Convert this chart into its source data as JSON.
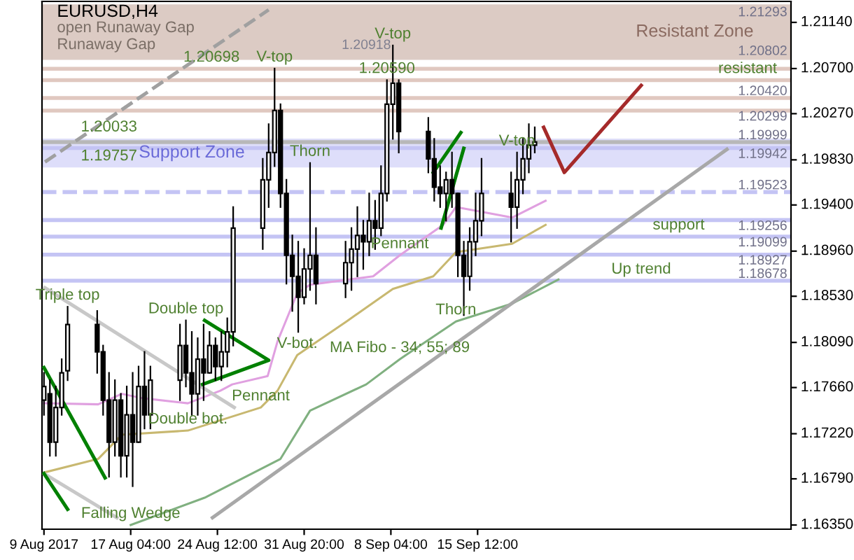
{
  "chart_data": {
    "type": "candlestick",
    "title": "EURUSD,H4",
    "color": "#000000",
    "x": [
      "2017-08-09T20:00",
      "2017-08-10T08:00",
      "2017-08-10T20:00",
      "2017-08-11T08:00",
      "2017-08-11T20:00",
      "2017-08-14T08:00",
      "2017-08-14T20:00",
      "2017-08-15T08:00",
      "2017-08-15T20:00",
      "2017-08-16T08:00",
      "2017-08-16T20:00",
      "2017-08-17T08:00",
      "2017-08-17T20:00",
      "2017-08-18T08:00",
      "2017-08-18T20:00",
      "2017-08-21T08:00",
      "2017-08-21T20:00",
      "2017-08-22T08:00",
      "2017-08-22T20:00",
      "2017-08-23T08:00",
      "2017-08-23T20:00",
      "2017-08-24T08:00",
      "2017-08-24T20:00",
      "2017-08-25T08:00",
      "2017-08-25T20:00",
      "2017-08-28T08:00",
      "2017-08-28T20:00",
      "2017-08-29T08:00",
      "2017-08-29T20:00",
      "2017-08-30T08:00",
      "2017-08-30T20:00",
      "2017-08-31T08:00",
      "2017-08-31T20:00",
      "2017-09-01T08:00",
      "2017-09-01T20:00",
      "2017-09-04T08:00",
      "2017-09-04T20:00",
      "2017-09-05T08:00",
      "2017-09-05T20:00",
      "2017-09-06T08:00",
      "2017-09-06T20:00",
      "2017-09-07T08:00",
      "2017-09-07T20:00",
      "2017-09-08T08:00",
      "2017-09-08T20:00",
      "2017-09-11T08:00",
      "2017-09-11T20:00",
      "2017-09-12T08:00",
      "2017-09-12T20:00",
      "2017-09-13T08:00",
      "2017-09-13T20:00",
      "2017-09-14T08:00",
      "2017-09-14T20:00",
      "2017-09-15T08:00",
      "2017-09-15T20:00",
      "2017-09-18T08:00",
      "2017-09-18T20:00",
      "2017-09-19T08:00",
      "2017-09-19T20:00",
      "2017-09-20T08:00"
    ],
    "ohlc": [
      [
        1.1754,
        1.178,
        1.174,
        1.1767
      ],
      [
        1.176,
        1.1773,
        1.1701,
        1.1714
      ],
      [
        1.1714,
        1.1767,
        1.1701,
        1.1747
      ],
      [
        1.1747,
        1.1793,
        1.174,
        1.178
      ],
      [
        1.1782,
        1.1843,
        1.1773,
        1.1826
      ],
      [
        1.1826,
        1.1839,
        1.178,
        1.18
      ],
      [
        1.18,
        1.1806,
        1.174,
        1.1754
      ],
      [
        1.1754,
        1.178,
        1.1681,
        1.1714
      ],
      [
        1.1714,
        1.1773,
        1.1701,
        1.1754
      ],
      [
        1.1754,
        1.176,
        1.1681,
        1.1701
      ],
      [
        1.1701,
        1.1767,
        1.1681,
        1.174
      ],
      [
        1.174,
        1.178,
        1.1672,
        1.1714
      ],
      [
        1.1714,
        1.1786,
        1.1714,
        1.1767
      ],
      [
        1.1767,
        1.18,
        1.1727,
        1.174
      ],
      [
        1.174,
        1.1786,
        1.1727,
        1.1773
      ],
      [
        1.1773,
        1.1826,
        1.1754,
        1.1806
      ],
      [
        1.1806,
        1.183,
        1.1767,
        1.178
      ],
      [
        1.178,
        1.1819,
        1.174,
        1.176
      ],
      [
        1.176,
        1.1813,
        1.174,
        1.1793
      ],
      [
        1.1793,
        1.1826,
        1.1754,
        1.178
      ],
      [
        1.178,
        1.1819,
        1.178,
        1.1806
      ],
      [
        1.1806,
        1.1813,
        1.1773,
        1.1786
      ],
      [
        1.1786,
        1.1819,
        1.1773,
        1.18
      ],
      [
        1.18,
        1.1832,
        1.1786,
        1.1819
      ],
      [
        1.1819,
        1.1938,
        1.1806,
        1.1918
      ],
      [
        1.1918,
        1.1984,
        1.1898,
        1.1964
      ],
      [
        1.1964,
        1.2017,
        1.1938,
        1.199
      ],
      [
        1.199,
        1.207,
        1.1977,
        1.203
      ],
      [
        1.203,
        1.2036,
        1.1938,
        1.1951
      ],
      [
        1.1951,
        1.1964,
        1.1865,
        1.1892
      ],
      [
        1.1892,
        1.1911,
        1.1839,
        1.1872
      ],
      [
        1.1872,
        1.1905,
        1.1819,
        1.1852
      ],
      [
        1.1852,
        1.1898,
        1.1846,
        1.1879
      ],
      [
        1.1879,
        1.198,
        1.1859,
        1.1892
      ],
      [
        1.1892,
        1.1918,
        1.1846,
        1.1865
      ],
      [
        1.1865,
        1.1905,
        1.1852,
        1.1885
      ],
      [
        1.1885,
        1.1918,
        1.1859,
        1.1898
      ],
      [
        1.1898,
        1.1938,
        1.1872,
        1.1911
      ],
      [
        1.1911,
        1.1925,
        1.1879,
        1.1905
      ],
      [
        1.1905,
        1.1951,
        1.1892,
        1.1925
      ],
      [
        1.1925,
        1.1944,
        1.1898,
        1.1918
      ],
      [
        1.1918,
        1.1977,
        1.1911,
        1.1951
      ],
      [
        1.1951,
        1.2059,
        1.1944,
        1.2036
      ],
      [
        1.2036,
        1.2092,
        1.2003,
        1.2056
      ],
      [
        1.2056,
        1.2059,
        1.199,
        1.201
      ],
      [
        1.201,
        1.2023,
        1.1971,
        1.1984
      ],
      [
        1.1984,
        1.2003,
        1.1944,
        1.1957
      ],
      [
        1.1957,
        1.1977,
        1.1938,
        1.1951
      ],
      [
        1.1951,
        1.1971,
        1.1925,
        1.1964
      ],
      [
        1.1964,
        1.199,
        1.1938,
        1.1951
      ],
      [
        1.1951,
        1.1951,
        1.1872,
        1.1892
      ],
      [
        1.1892,
        1.1905,
        1.1835,
        1.1872
      ],
      [
        1.1872,
        1.1918,
        1.1859,
        1.1905
      ],
      [
        1.1905,
        1.1951,
        1.1892,
        1.1925
      ],
      [
        1.1925,
        1.1984,
        1.1911,
        1.1951
      ],
      [
        1.1951,
        1.1971,
        1.1905,
        1.1938
      ],
      [
        1.1938,
        1.199,
        1.1918,
        1.1964
      ],
      [
        1.1964,
        1.2003,
        1.1951,
        1.1984
      ],
      [
        1.1984,
        1.2017,
        1.1971,
        1.1997
      ],
      [
        1.1997,
        1.2014,
        1.199,
        1.2
      ]
    ],
    "series": [
      {
        "type": "line",
        "color": "#e0a0e0",
        "x": [
          "2017-08-09T20:00",
          "2017-08-14T10:00",
          "2017-08-16T10:00",
          "2017-08-18T02:00",
          "2017-08-22T00:00",
          "2017-08-24T18:00",
          "2017-08-25T18:00",
          "2017-08-28T18:00",
          "2017-08-29T14:00",
          "2017-08-31T06:00",
          "2017-09-01T08:00",
          "2017-09-06T16:00",
          "2017-09-08T22:00",
          "2017-09-12T14:00",
          "2017-09-13T16:00",
          "2017-09-18T10:00",
          "2017-09-21T06:00"
        ],
        "values": [
          1.1751,
          1.175,
          1.176,
          1.1756,
          1.1751,
          1.1763,
          1.1769,
          1.1777,
          1.181,
          1.1856,
          1.1864,
          1.1872,
          1.1892,
          1.1921,
          1.1938,
          1.1928,
          1.1944
        ]
      },
      {
        "type": "line",
        "color": "#c8b870",
        "x": [
          "2017-08-09T20:00",
          "2017-08-14T10:00",
          "2017-08-16T10:00",
          "2017-08-22T00:00",
          "2017-08-28T04:00",
          "2017-08-29T14:00",
          "2017-08-31T06:00",
          "2017-09-04T10:00",
          "2017-09-08T08:00",
          "2017-09-11T18:00",
          "2017-09-13T16:00",
          "2017-09-18T10:00",
          "2017-09-21T06:00"
        ],
        "values": [
          1.1685,
          1.1698,
          1.1721,
          1.1725,
          1.1747,
          1.1763,
          1.1797,
          1.1829,
          1.186,
          1.1872,
          1.1895,
          1.1903,
          1.1921
        ]
      },
      {
        "type": "line",
        "color": "#80b080",
        "x": [
          "2017-08-17T04:00",
          "2017-08-23T10:00",
          "2017-08-29T20:00",
          "2017-09-01T08:00",
          "2017-09-06T02:00",
          "2017-09-08T22:00",
          "2017-09-13T16:00",
          "2017-09-18T10:00",
          "2017-09-22T08:00"
        ],
        "values": [
          1.1635,
          1.1661,
          1.1698,
          1.1744,
          1.1769,
          1.1793,
          1.1829,
          1.1846,
          1.1869
        ]
      },
      {
        "type": "line",
        "color": "#a8a8a8",
        "x": [
          "2017-08-24T02:00",
          "2017-10-06T14:00"
        ],
        "values": [
          1.1642,
          1.1993
        ]
      },
      {
        "type": "line",
        "color": "#a0a0a0",
        "line_style": "dashed",
        "x": [
          "2017-08-09T22:00",
          "2017-08-28T20:00"
        ],
        "values": [
          1.1981,
          1.2126
        ]
      },
      {
        "type": "line",
        "color": "#c8c8c8",
        "x": [
          "2017-08-09T22:00",
          "2017-08-25T22:00"
        ],
        "values": [
          1.1861,
          1.1747
        ]
      },
      {
        "type": "line",
        "color": "#c8c8c8",
        "x": [
          "2017-08-09T20:00",
          "2017-08-16T00:00"
        ],
        "values": [
          1.1684,
          1.1642
        ]
      },
      {
        "type": "line",
        "color": "#008000",
        "x": [
          "2017-08-09T20:00",
          "2017-08-15T00:00"
        ],
        "values": [
          1.1785,
          1.168
        ]
      },
      {
        "type": "line",
        "color": "#008000",
        "x": [
          "2017-08-09T20:00",
          "2017-08-11T20:00"
        ],
        "values": [
          1.1684,
          1.165
        ]
      },
      {
        "type": "line",
        "color": "#008000",
        "x": [
          "2017-08-23T06:00",
          "2017-08-28T20:00",
          "2017-08-23T10:00"
        ],
        "values": [
          1.1769,
          1.1792,
          1.183
        ]
      },
      {
        "type": "line",
        "color": "#008000",
        "x": [
          "2017-09-11T18:00",
          "2017-09-14T02:00"
        ],
        "values": [
          1.1971,
          1.2009
        ]
      },
      {
        "type": "line",
        "color": "#008000",
        "x": [
          "2017-09-12T10:00",
          "2017-09-14T08:00"
        ],
        "values": [
          1.1918,
          1.1994
        ]
      },
      {
        "type": "line",
        "color": "#a52a2a",
        "x": [
          "2017-09-21T02:00",
          "2017-09-22T20:00",
          "2017-09-29T08:00"
        ],
        "values": [
          1.2014,
          1.1971,
          1.2054
        ]
      }
    ],
    "xlim": [
      "2017-08-09T16:00",
      "2017-10-12T00:00"
    ],
    "ylim": [
      1.1631,
      1.2134
    ],
    "xticks": [
      {
        "value": "2017-08-09T20:00",
        "label": "9 Aug 2017"
      },
      {
        "value": "2017-08-17T04:00",
        "label": "17 Aug 04:00"
      },
      {
        "value": "2017-08-24T12:00",
        "label": "24 Aug 12:00"
      },
      {
        "value": "2017-08-31T20:00",
        "label": "31 Aug 20:00"
      },
      {
        "value": "2017-09-08T04:00",
        "label": "8 Sep 04:00"
      },
      {
        "value": "2017-09-15T12:00",
        "label": "15 Sep 12:00"
      }
    ],
    "yticks": [
      {
        "value": 1.1635,
        "label": "1.16350"
      },
      {
        "value": 1.1679,
        "label": "1.16790"
      },
      {
        "value": 1.1722,
        "label": "1.17220"
      },
      {
        "value": 1.1766,
        "label": "1.17660"
      },
      {
        "value": 1.1809,
        "label": "1.18090"
      },
      {
        "value": 1.1853,
        "label": "1.18530"
      },
      {
        "value": 1.1896,
        "label": "1.18960"
      },
      {
        "value": 1.194,
        "label": "1.19400"
      },
      {
        "value": 1.1983,
        "label": "1.19830"
      },
      {
        "value": 1.2027,
        "label": "1.20270"
      },
      {
        "value": 1.207,
        "label": "1.20700"
      },
      {
        "value": 1.2114,
        "label": "1.21140"
      }
    ],
    "bands": [
      {
        "axis": "y",
        "from": 1.20802,
        "to": 1.21293,
        "label": "Resistant Zone",
        "color": "#dccbc4"
      },
      {
        "axis": "y",
        "from": 1.19757,
        "to": 1.20033,
        "label": "Support Zone",
        "color": "#dedefa"
      }
    ],
    "ref_lines": [
      {
        "axis": "y",
        "value": 1.20802,
        "label": "1.20802",
        "color": "#dccbc4"
      },
      {
        "axis": "y",
        "value": 1.21293,
        "label": "1.21293",
        "color": "#dccbc4"
      },
      {
        "axis": "y",
        "value": 1.2042,
        "label": "1.20420",
        "color": "#e0c8c0"
      },
      {
        "axis": "y",
        "value": 1.20299,
        "label": "1.20299",
        "color": "#e0c8c0"
      },
      {
        "axis": "y",
        "value": 1.19999,
        "label": "1.19999",
        "color": "#b8b8b8"
      },
      {
        "axis": "y",
        "value": 1.19942,
        "label": "1.19942",
        "color": "#c4c4f4"
      },
      {
        "axis": "y",
        "value": 1.19523,
        "label": "1.19523",
        "color": "#c4c4f4",
        "line_style": "dashed"
      },
      {
        "axis": "y",
        "value": 1.19256,
        "label": "1.19256",
        "color": "#c4c4f4"
      },
      {
        "axis": "y",
        "value": 1.20698,
        "color": "#e0c8c0"
      },
      {
        "axis": "y",
        "value": 1.19099,
        "label": "1.19099",
        "color": "#c4c4f4"
      },
      {
        "axis": "y",
        "value": 1.2059,
        "color": "#e0c8c0"
      },
      {
        "axis": "y",
        "value": 1.18927,
        "label": "1.18927",
        "color": "#c4c4f4"
      },
      {
        "axis": "y",
        "value": 1.18678,
        "label": "1.18678",
        "color": "#c4c4f4"
      }
    ],
    "annotations": [
      "open Runaway Gap",
      "Runaway Gap",
      {
        "text": "V-top",
        "x": "2017-08-29T08:00",
        "y": 1.207
      },
      {
        "text": "1.20698",
        "x": "2017-08-24T00:00",
        "y": 1.20698
      },
      {
        "text": "V-top",
        "x": "2017-09-08T08:00",
        "y": 1.2092
      },
      {
        "text": "1.20918",
        "x": "2017-09-08T08:00",
        "y": 1.2092
      },
      {
        "text": "1.20590",
        "x": "2017-09-07T20:00",
        "y": 1.2059
      },
      {
        "text": "resistant",
        "x": "2017-10-08T08:00",
        "y": 1.2059
      },
      {
        "text": "1.20033",
        "x": "2017-08-15T08:00",
        "y": 1.20033
      },
      {
        "text": "1.19757",
        "x": "2017-08-15T08:00",
        "y": 1.19757
      },
      {
        "text": "Thorn",
        "x": "2017-09-01T08:00",
        "y": 1.198
      },
      {
        "text": "V-top",
        "x": "2017-09-18T20:00",
        "y": 1.199
      },
      {
        "text": "Pennant",
        "x": "2017-09-08T22:00",
        "y": 1.1892
      },
      {
        "text": "support",
        "x": "2017-10-02T12:00",
        "y": 1.19099
      },
      {
        "text": "Up trend",
        "x": "2017-09-29T08:00",
        "y": 1.18678
      },
      {
        "text": "Triple top",
        "x": "2017-08-11T20:00",
        "y": 1.1843
      },
      {
        "text": "Double top",
        "x": "2017-08-21T20:00",
        "y": 1.183
      },
      {
        "text": "MA Fibo - 34; 55; 89",
        "x": "2017-09-08T22:00",
        "y": 1.1793
      },
      {
        "text": "V-bot.",
        "x": "2017-08-31T06:00",
        "y": 1.1797
      },
      {
        "text": "Thorn",
        "x": "2017-09-13T16:00",
        "y": 1.1829
      },
      {
        "text": "Pennant",
        "x": "2017-08-28T04:00",
        "y": 1.1747
      },
      {
        "text": "Double bot.",
        "x": "2017-08-22T00:00",
        "y": 1.1725
      },
      {
        "text": "Falling Wedge",
        "x": "2017-08-17T04:00",
        "y": 1.1635
      }
    ]
  }
}
